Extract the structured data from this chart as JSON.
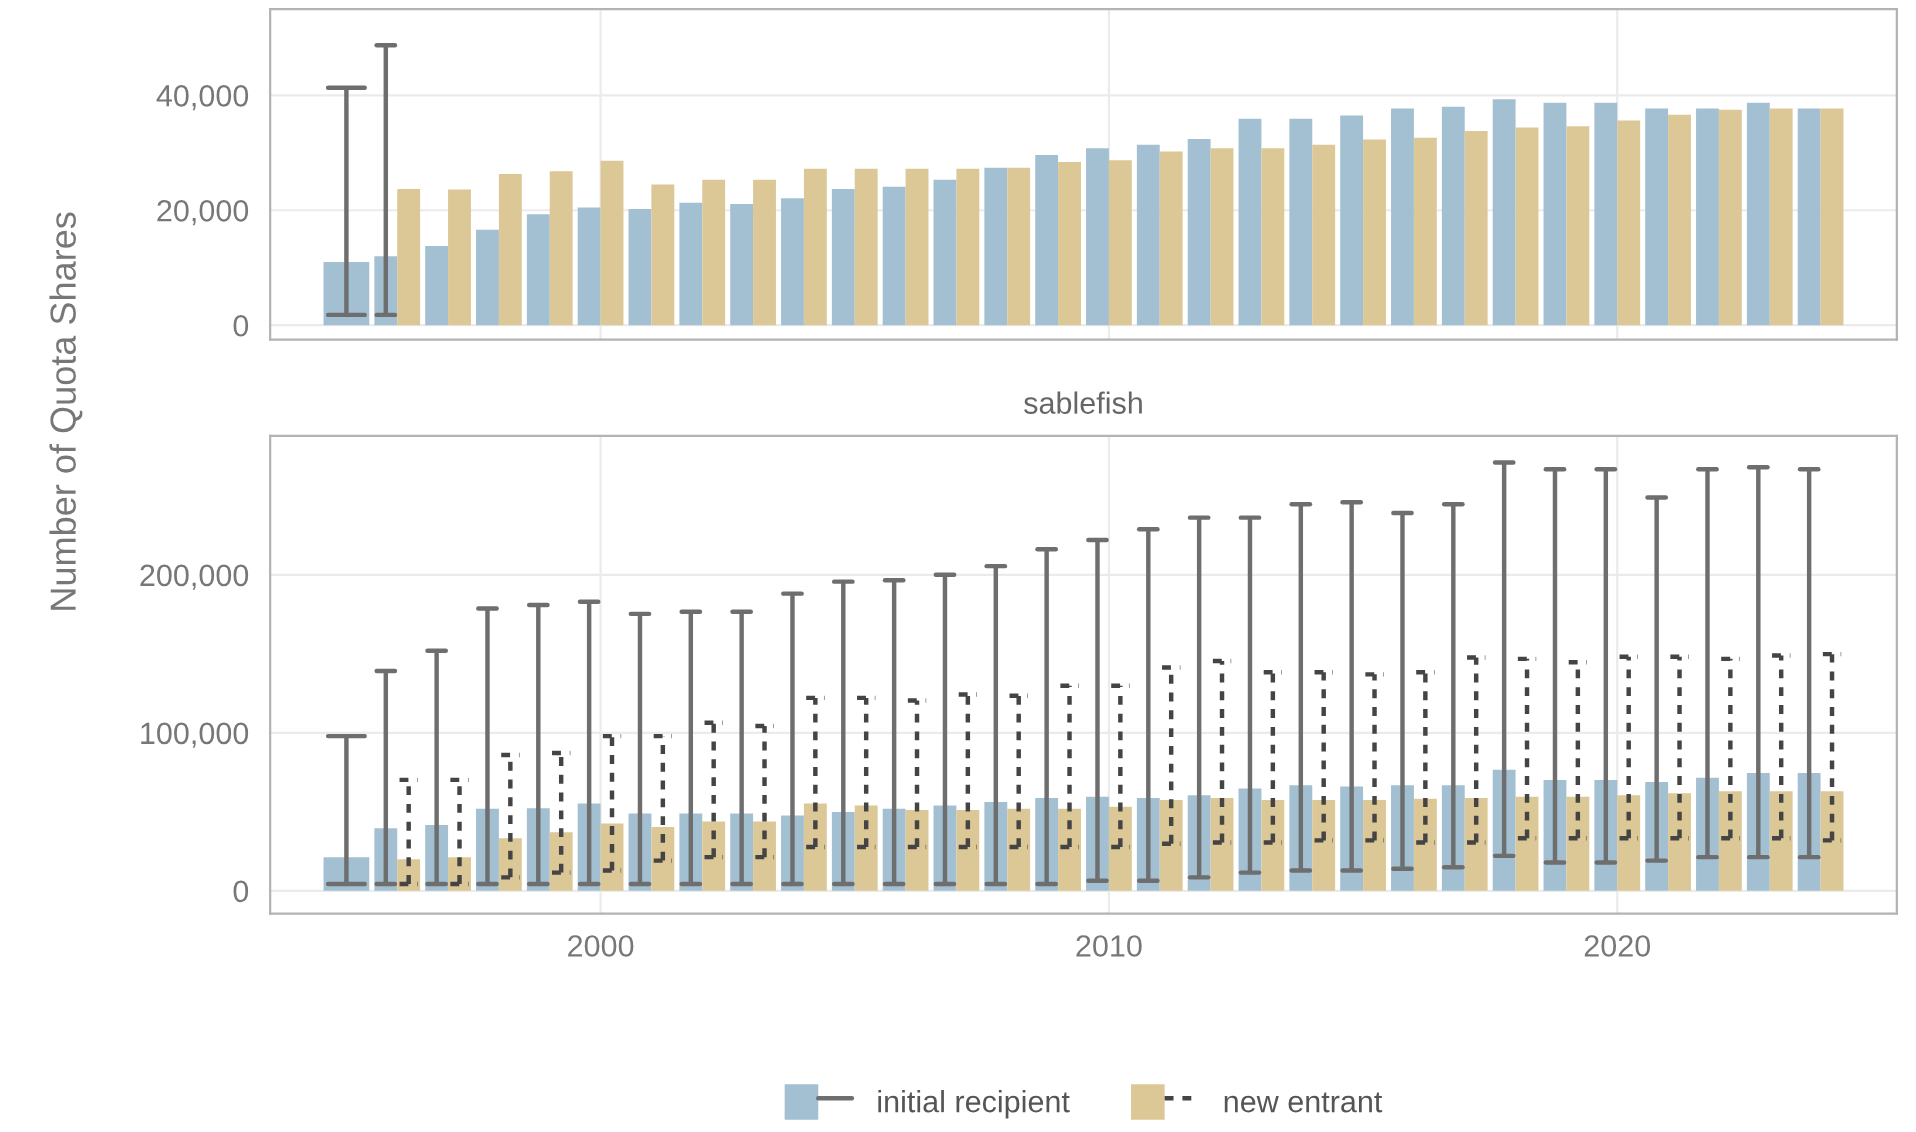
{
  "chart_data": [
    {
      "type": "bar",
      "x": [
        1995,
        1996,
        1997,
        1998,
        1999,
        2000,
        2001,
        2002,
        2003,
        2004,
        2005,
        2006,
        2007,
        2008,
        2009,
        2010,
        2011,
        2012,
        2013,
        2014,
        2015,
        2016,
        2017,
        2018,
        2019,
        2020,
        2021,
        2022,
        2023,
        2024
      ],
      "xlim": [
        1993.5,
        2025.5
      ],
      "xticks": [
        2000,
        2010,
        2020
      ],
      "ylim": [
        -2500,
        55000
      ],
      "yticks": [
        0,
        {
          "value": 20000,
          "label": "20,000"
        },
        {
          "value": 40000,
          "label": "40,000"
        }
      ],
      "tick_labels": "y",
      "grid": true,
      "legend": false,
      "series": [
        {
          "color": "#a3c0d3",
          "line_style": "solid",
          "values": [
            11000,
            12000,
            13800,
            16600,
            19300,
            20500,
            20200,
            21300,
            21100,
            22100,
            23700,
            24100,
            25300,
            27400,
            29600,
            30800,
            31400,
            32400,
            35900,
            35900,
            36500,
            37700,
            38000,
            39300,
            38700,
            38700,
            37700,
            37700,
            38700,
            37700
          ],
          "errors": [
            [
              1800,
              41300
            ],
            [
              1800,
              48700
            ],
            null,
            null,
            null,
            null,
            null,
            null,
            null,
            null,
            null,
            null,
            null,
            null,
            null,
            null,
            null,
            null,
            null,
            null,
            null,
            null,
            null,
            null,
            null,
            null,
            null,
            null,
            null,
            null
          ]
        },
        {
          "color": "#dcc796",
          "line_style": "dashed",
          "values": [
            null,
            23700,
            23600,
            26300,
            26800,
            28600,
            24500,
            25300,
            25300,
            27200,
            27200,
            27200,
            27200,
            27400,
            28400,
            28700,
            30200,
            30800,
            30800,
            31400,
            32300,
            32600,
            33800,
            34400,
            34600,
            35600,
            36600,
            37500,
            37700,
            37700
          ]
        }
      ]
    },
    {
      "type": "bar",
      "title": "sablefish",
      "ylabel": "Number of Quota Shares",
      "x": [
        1995,
        1996,
        1997,
        1998,
        1999,
        2000,
        2001,
        2002,
        2003,
        2004,
        2005,
        2006,
        2007,
        2008,
        2009,
        2010,
        2011,
        2012,
        2013,
        2014,
        2015,
        2016,
        2017,
        2018,
        2019,
        2020,
        2021,
        2022,
        2023,
        2024
      ],
      "xlim": [
        1993.5,
        2025.5
      ],
      "xticks": [
        2000,
        2010,
        2020
      ],
      "ylim": [
        -14400,
        288000
      ],
      "yticks": [
        0,
        {
          "value": 100000,
          "label": "100,000"
        },
        {
          "value": 200000,
          "label": "200,000"
        }
      ],
      "grid": true,
      "legend": "bottom",
      "series": [
        {
          "name": "initial recipient",
          "color": "#a3c0d3",
          "line_style": "solid",
          "values": [
            21300,
            39600,
            41700,
            51900,
            52300,
            55300,
            48900,
            48900,
            48900,
            47700,
            49800,
            51900,
            54000,
            56200,
            58700,
            59600,
            58700,
            60400,
            64700,
            66800,
            66000,
            66800,
            66800,
            76600,
            70200,
            70200,
            68900,
            71500,
            74500,
            74500
          ],
          "errors": [
            [
              4300,
              97900
            ],
            [
              4300,
              139100
            ],
            [
              4300,
              151900
            ],
            [
              4300,
              178700
            ],
            [
              4300,
              180900
            ],
            [
              4300,
              183000
            ],
            [
              4300,
              175300
            ],
            [
              4300,
              176600
            ],
            [
              4300,
              176600
            ],
            [
              4300,
              188100
            ],
            [
              4300,
              195700
            ],
            [
              4300,
              196600
            ],
            [
              4300,
              200000
            ],
            [
              4300,
              205500
            ],
            [
              4300,
              216200
            ],
            [
              6400,
              222100
            ],
            [
              6400,
              228900
            ],
            [
              8500,
              236200
            ],
            [
              11500,
              236200
            ],
            [
              12800,
              244700
            ],
            [
              12800,
              246000
            ],
            [
              14000,
              239100
            ],
            [
              14900,
              244700
            ],
            [
              22100,
              271100
            ],
            [
              17900,
              266800
            ],
            [
              17900,
              266800
            ],
            [
              19100,
              248900
            ],
            [
              21300,
              266800
            ],
            [
              21300,
              268100
            ],
            [
              21300,
              266800
            ]
          ]
        },
        {
          "name": "new entrant",
          "color": "#dcc796",
          "line_style": "dashed",
          "values": [
            null,
            20000,
            21300,
            33200,
            37000,
            42600,
            40400,
            43800,
            43800,
            55300,
            54000,
            51100,
            51100,
            51900,
            51900,
            53200,
            57400,
            58700,
            57400,
            57400,
            57400,
            58300,
            58700,
            59600,
            59600,
            60400,
            61700,
            63000,
            63000,
            63000
          ],
          "errors": [
            null,
            [
              4300,
              70200
            ],
            [
              4300,
              70200
            ],
            [
              8500,
              86000
            ],
            [
              11500,
              87200
            ],
            [
              12800,
              97900
            ],
            [
              19100,
              97900
            ],
            [
              21300,
              106400
            ],
            [
              21300,
              104300
            ],
            [
              27700,
              122100
            ],
            [
              27700,
              122100
            ],
            [
              27700,
              120400
            ],
            [
              27700,
              124300
            ],
            [
              27700,
              123400
            ],
            [
              27700,
              129800
            ],
            [
              27700,
              129800
            ],
            [
              29800,
              141300
            ],
            [
              30600,
              145500
            ],
            [
              30600,
              138300
            ],
            [
              31900,
              138300
            ],
            [
              31900,
              137000
            ],
            [
              30600,
              138300
            ],
            [
              30600,
              147700
            ],
            [
              33200,
              146800
            ],
            [
              33200,
              144700
            ],
            [
              33200,
              148100
            ],
            [
              33200,
              148100
            ],
            [
              33200,
              146800
            ],
            [
              33200,
              148900
            ],
            [
              31900,
              149800
            ]
          ]
        }
      ]
    }
  ]
}
